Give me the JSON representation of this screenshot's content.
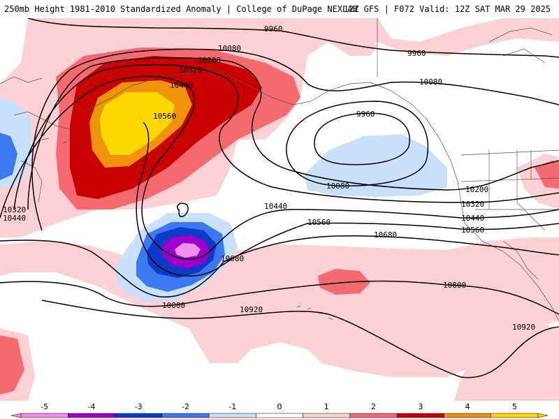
{
  "header": {
    "title_left": "250mb Height 1981-2010 Standardized Anomaly | College of DuPage NEXLAB",
    "title_right": "12Z GFS | F072 Valid: 12Z SAT MAR 29 2025"
  },
  "contour_labels": [
    "9960",
    "10080",
    "10200",
    "10320",
    "10440",
    "10560",
    "9960",
    "10080",
    "9960",
    "10080",
    "10200",
    "10320",
    "10440",
    "10560",
    "10440",
    "10560",
    "10680",
    "10680",
    "10800",
    "10920",
    "10800",
    "10920",
    "10320",
    "10440"
  ],
  "colorbar": {
    "ticks": [
      "-5",
      "-4",
      "-3",
      "-2",
      "-1",
      "0",
      "1",
      "2",
      "3",
      "4",
      "5"
    ],
    "colors": [
      "#f48ef0",
      "#9a00c8",
      "#0a3cc8",
      "#3c78f0",
      "#c8e0fa",
      "#ffffff",
      "#fcd0d4",
      "#f46a6e",
      "#c80000",
      "#f0920a",
      "#fcd800"
    ]
  },
  "anomaly_colors": {
    "light_pink": "#fcd0d4",
    "pink": "#f46a6e",
    "dark_red": "#c80000",
    "orange": "#f0920a",
    "yellow": "#fcd800",
    "light_blue": "#c8e0fa",
    "blue": "#3c78f0",
    "dark_blue": "#0a3cc8",
    "purple": "#9a00c8",
    "magenta": "#f48ef0"
  }
}
